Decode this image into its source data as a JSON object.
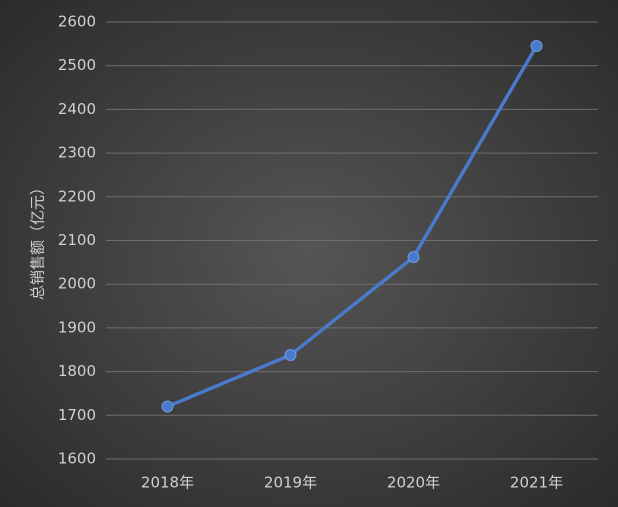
{
  "chart_data": {
    "type": "line",
    "y_label": "总销售额（亿元）",
    "categories": [
      "2018年",
      "2019年",
      "2020年",
      "2021年"
    ],
    "values": [
      1720,
      1838,
      2062,
      2545
    ],
    "color": "#4a7acb",
    "ylim": [
      1600,
      2600
    ],
    "yticks": [
      1600,
      1700,
      1800,
      1900,
      2000,
      2100,
      2200,
      2300,
      2400,
      2500,
      2600
    ],
    "grid": true
  }
}
